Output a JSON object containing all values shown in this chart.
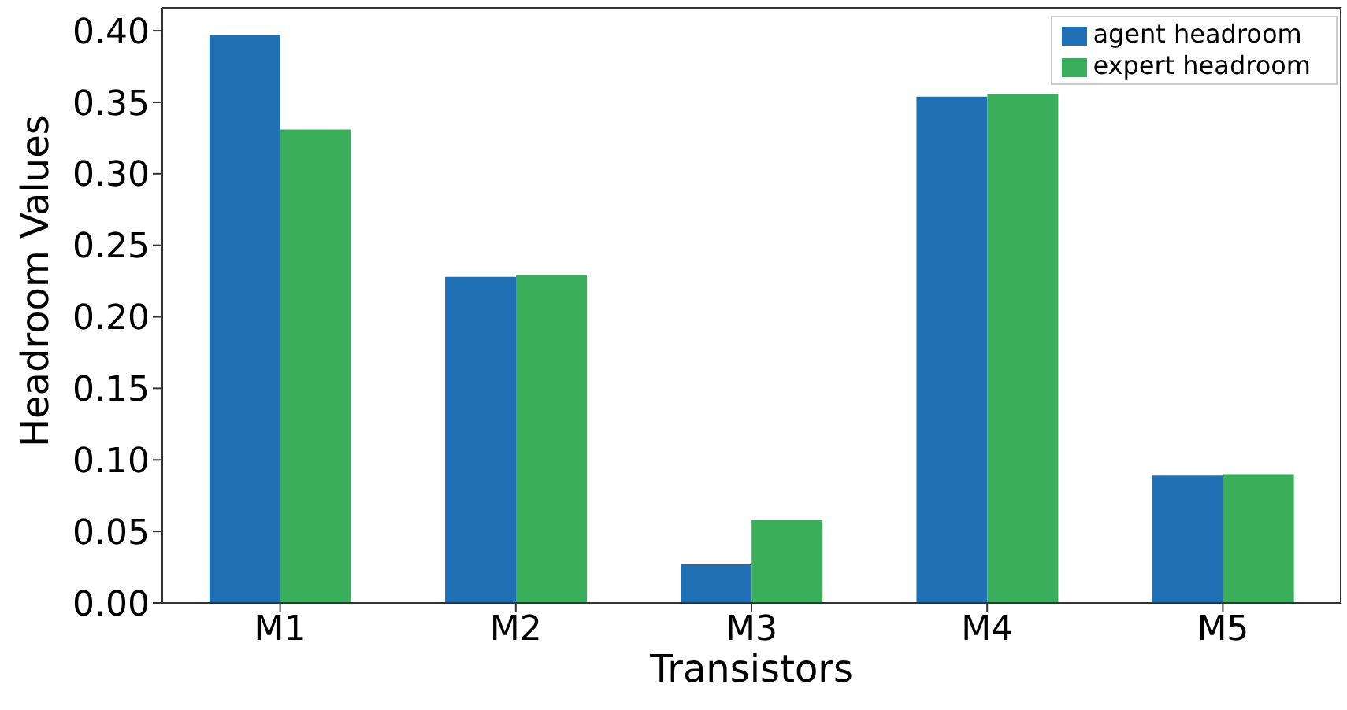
{
  "chart_data": {
    "type": "bar",
    "xlabel": "Transistors",
    "ylabel": "Headroom Values",
    "categories": [
      "M1",
      "M2",
      "M3",
      "M4",
      "M5"
    ],
    "series": [
      {
        "name": "agent headroom",
        "color": "#1f70b5",
        "values": [
          0.397,
          0.228,
          0.027,
          0.354,
          0.089
        ]
      },
      {
        "name": "expert headroom",
        "color": "#3aae5a",
        "values": [
          0.331,
          0.229,
          0.058,
          0.356,
          0.09
        ]
      }
    ],
    "ylim": [
      0,
      0.416
    ],
    "yticks": [
      {
        "value": 0,
        "label": "0.00"
      },
      {
        "value": 0.05,
        "label": "0.05"
      },
      {
        "value": 0.1,
        "label": "0.10"
      },
      {
        "value": 0.15,
        "label": "0.15"
      },
      {
        "value": 0.2,
        "label": "0.20"
      },
      {
        "value": 0.25,
        "label": "0.25"
      },
      {
        "value": 0.3,
        "label": "0.30"
      },
      {
        "value": 0.35,
        "label": "0.35"
      },
      {
        "value": 0.4,
        "label": "0.40"
      }
    ],
    "legend": "top right"
  }
}
